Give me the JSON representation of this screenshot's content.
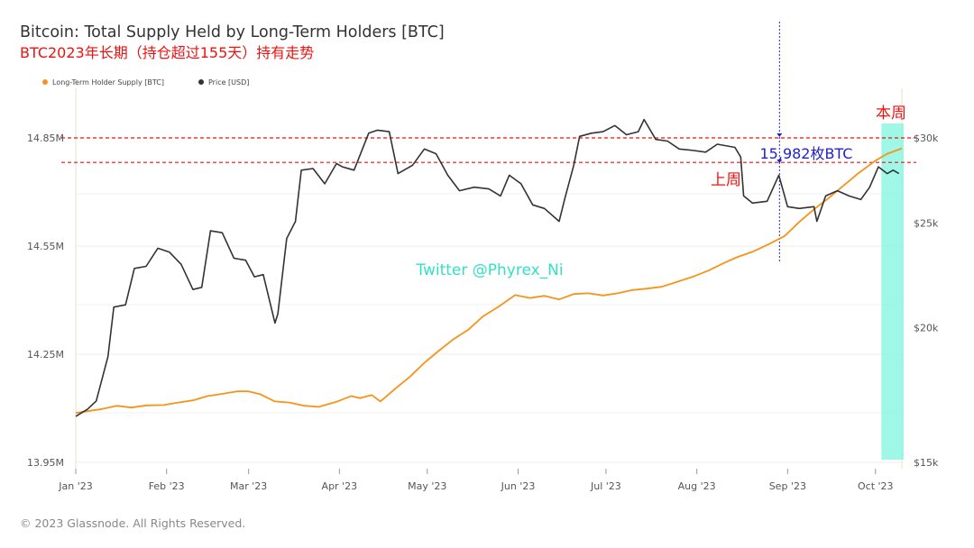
{
  "header": {
    "title": "Bitcoin: Total Supply Held by Long-Term Holders [BTC]",
    "subtitle": "BTC2023年长期（持仓超过155天）持有走势"
  },
  "footer": {
    "copyright": "© 2023 Glassnode. All Rights Reserved."
  },
  "chart_data": {
    "type": "line",
    "title": "Bitcoin: Total Supply Held by Long-Term Holders [BTC]",
    "subtitle": "BTC2023年长期（持仓超过155天）持有走势",
    "legend_position": "top-left",
    "grid": true,
    "x_ticks": [
      "Jan '23",
      "Feb '23",
      "Mar '23",
      "Apr '23",
      "May '23",
      "Jun '23",
      "Jul '23",
      "Aug '23",
      "Sep '23",
      "Oct '23"
    ],
    "x_range": [
      "2023-01-01",
      "2023-10-10"
    ],
    "y_left": {
      "ticks": [
        "13.95M",
        "14.25M",
        "14.55M",
        "14.85M"
      ],
      "tick_values": [
        13950000,
        14250000,
        14550000,
        14850000
      ],
      "range": [
        13950000,
        14850000
      ],
      "scale": "linear"
    },
    "y_right": {
      "ticks": [
        "$15k",
        "$20k",
        "$25k",
        "$30k"
      ],
      "tick_values": [
        15000,
        20000,
        25000,
        30000
      ],
      "range": [
        15000,
        30000
      ],
      "scale": "log"
    },
    "series": [
      {
        "name": "Long-Term Holder Supply [BTC]",
        "axis": "left",
        "color": "#f7931a",
        "points": [
          [
            "2023-01-01",
            14087000
          ],
          [
            "2023-01-05",
            14092000
          ],
          [
            "2023-01-10",
            14098000
          ],
          [
            "2023-01-15",
            14107000
          ],
          [
            "2023-01-20",
            14102000
          ],
          [
            "2023-01-25",
            14108000
          ],
          [
            "2023-01-31",
            14109000
          ],
          [
            "2023-02-05",
            14116000
          ],
          [
            "2023-02-10",
            14122000
          ],
          [
            "2023-02-15",
            14134000
          ],
          [
            "2023-02-20",
            14140000
          ],
          [
            "2023-02-25",
            14147000
          ],
          [
            "2023-03-01",
            14147000
          ],
          [
            "2023-03-05",
            14139000
          ],
          [
            "2023-03-10",
            14119000
          ],
          [
            "2023-03-15",
            14116000
          ],
          [
            "2023-03-20",
            14107000
          ],
          [
            "2023-03-25",
            14104000
          ],
          [
            "2023-03-31",
            14118000
          ],
          [
            "2023-04-05",
            14134000
          ],
          [
            "2023-04-08",
            14128000
          ],
          [
            "2023-04-12",
            14137000
          ],
          [
            "2023-04-15",
            14119000
          ],
          [
            "2023-04-20",
            14154000
          ],
          [
            "2023-04-25",
            14187000
          ],
          [
            "2023-04-30",
            14226000
          ],
          [
            "2023-05-05",
            14260000
          ],
          [
            "2023-05-10",
            14292000
          ],
          [
            "2023-05-15",
            14318000
          ],
          [
            "2023-05-20",
            14355000
          ],
          [
            "2023-05-25",
            14380000
          ],
          [
            "2023-05-31",
            14414000
          ],
          [
            "2023-06-05",
            14406000
          ],
          [
            "2023-06-10",
            14412000
          ],
          [
            "2023-06-15",
            14402000
          ],
          [
            "2023-06-20",
            14417000
          ],
          [
            "2023-06-25",
            14419000
          ],
          [
            "2023-06-30",
            14413000
          ],
          [
            "2023-07-05",
            14419000
          ],
          [
            "2023-07-10",
            14428000
          ],
          [
            "2023-07-15",
            14432000
          ],
          [
            "2023-07-20",
            14437000
          ],
          [
            "2023-07-25",
            14450000
          ],
          [
            "2023-07-31",
            14466000
          ],
          [
            "2023-08-05",
            14482000
          ],
          [
            "2023-08-10",
            14502000
          ],
          [
            "2023-08-15",
            14520000
          ],
          [
            "2023-08-20",
            14534000
          ],
          [
            "2023-08-25",
            14553000
          ],
          [
            "2023-08-31",
            14578000
          ],
          [
            "2023-09-05",
            14617000
          ],
          [
            "2023-09-10",
            14652000
          ],
          [
            "2023-09-15",
            14683000
          ],
          [
            "2023-09-20",
            14717000
          ],
          [
            "2023-09-25",
            14751000
          ],
          [
            "2023-10-01",
            14787000
          ],
          [
            "2023-10-05",
            14806000
          ],
          [
            "2023-10-10",
            14821000
          ]
        ]
      },
      {
        "name": "Price [USD]",
        "axis": "right",
        "color": "#333333",
        "points": [
          [
            "2023-01-01",
            16550
          ],
          [
            "2023-01-05",
            16800
          ],
          [
            "2023-01-08",
            17100
          ],
          [
            "2023-01-12",
            18800
          ],
          [
            "2023-01-14",
            20900
          ],
          [
            "2023-01-18",
            21000
          ],
          [
            "2023-01-21",
            22700
          ],
          [
            "2023-01-25",
            22800
          ],
          [
            "2023-01-29",
            23700
          ],
          [
            "2023-02-02",
            23500
          ],
          [
            "2023-02-06",
            22900
          ],
          [
            "2023-02-10",
            21700
          ],
          [
            "2023-02-13",
            21800
          ],
          [
            "2023-02-16",
            24600
          ],
          [
            "2023-02-20",
            24500
          ],
          [
            "2023-02-24",
            23200
          ],
          [
            "2023-02-28",
            23100
          ],
          [
            "2023-03-03",
            22300
          ],
          [
            "2023-03-06",
            22400
          ],
          [
            "2023-03-10",
            20200
          ],
          [
            "2023-03-11",
            20600
          ],
          [
            "2023-03-14",
            24200
          ],
          [
            "2023-03-17",
            25100
          ],
          [
            "2023-03-19",
            28000
          ],
          [
            "2023-03-23",
            28100
          ],
          [
            "2023-03-27",
            27200
          ],
          [
            "2023-03-31",
            28400
          ],
          [
            "2023-04-02",
            28200
          ],
          [
            "2023-04-06",
            28000
          ],
          [
            "2023-04-11",
            30300
          ],
          [
            "2023-04-14",
            30500
          ],
          [
            "2023-04-18",
            30400
          ],
          [
            "2023-04-21",
            27800
          ],
          [
            "2023-04-26",
            28300
          ],
          [
            "2023-04-30",
            29300
          ],
          [
            "2023-05-04",
            29000
          ],
          [
            "2023-05-08",
            27700
          ],
          [
            "2023-05-12",
            26800
          ],
          [
            "2023-05-17",
            27000
          ],
          [
            "2023-05-22",
            26900
          ],
          [
            "2023-05-26",
            26500
          ],
          [
            "2023-05-29",
            27700
          ],
          [
            "2023-06-02",
            27200
          ],
          [
            "2023-06-06",
            26000
          ],
          [
            "2023-06-10",
            25800
          ],
          [
            "2023-06-15",
            25100
          ],
          [
            "2023-06-17",
            26400
          ],
          [
            "2023-06-20",
            28300
          ],
          [
            "2023-06-22",
            30100
          ],
          [
            "2023-06-26",
            30300
          ],
          [
            "2023-06-30",
            30400
          ],
          [
            "2023-07-04",
            30800
          ],
          [
            "2023-07-08",
            30200
          ],
          [
            "2023-07-12",
            30400
          ],
          [
            "2023-07-14",
            31200
          ],
          [
            "2023-07-18",
            29900
          ],
          [
            "2023-07-22",
            29800
          ],
          [
            "2023-07-26",
            29300
          ],
          [
            "2023-07-31",
            29200
          ],
          [
            "2023-08-04",
            29100
          ],
          [
            "2023-08-08",
            29600
          ],
          [
            "2023-08-14",
            29400
          ],
          [
            "2023-08-16",
            28800
          ],
          [
            "2023-08-17",
            26500
          ],
          [
            "2023-08-20",
            26100
          ],
          [
            "2023-08-25",
            26200
          ],
          [
            "2023-08-29",
            27700
          ],
          [
            "2023-09-01",
            25900
          ],
          [
            "2023-09-05",
            25800
          ],
          [
            "2023-09-10",
            25900
          ],
          [
            "2023-09-11",
            25100
          ],
          [
            "2023-09-14",
            26500
          ],
          [
            "2023-09-18",
            26800
          ],
          [
            "2023-09-22",
            26500
          ],
          [
            "2023-09-26",
            26300
          ],
          [
            "2023-09-29",
            27000
          ],
          [
            "2023-10-02",
            28200
          ],
          [
            "2023-10-05",
            27800
          ],
          [
            "2023-10-07",
            28000
          ],
          [
            "2023-10-09",
            27800
          ]
        ]
      }
    ],
    "annotations": [
      {
        "text": "本周",
        "color": "#ee1111",
        "date": "2023-10-03"
      },
      {
        "text": "上周",
        "color": "#ee1111",
        "date": "2023-08-25"
      },
      {
        "text": "15,982枚BTC",
        "color": "#2222cc",
        "date": "2023-09-11"
      },
      {
        "text": "Twitter @Phyrex_Ni",
        "color": "#33e0c6",
        "date": "2023-05-15"
      }
    ],
    "reference_lines": [
      {
        "type": "horizontal-dashed",
        "color": "#ee1111",
        "y": 14850000
      },
      {
        "type": "horizontal-dashed",
        "color": "#ee1111",
        "y": 14782000
      },
      {
        "type": "vertical-dotted",
        "color": "#2222cc",
        "date": "2023-09-01"
      }
    ],
    "highlight_band": {
      "color": "#7ff5df",
      "x_start": "2023-10-03",
      "x_end": "2023-10-10"
    }
  }
}
